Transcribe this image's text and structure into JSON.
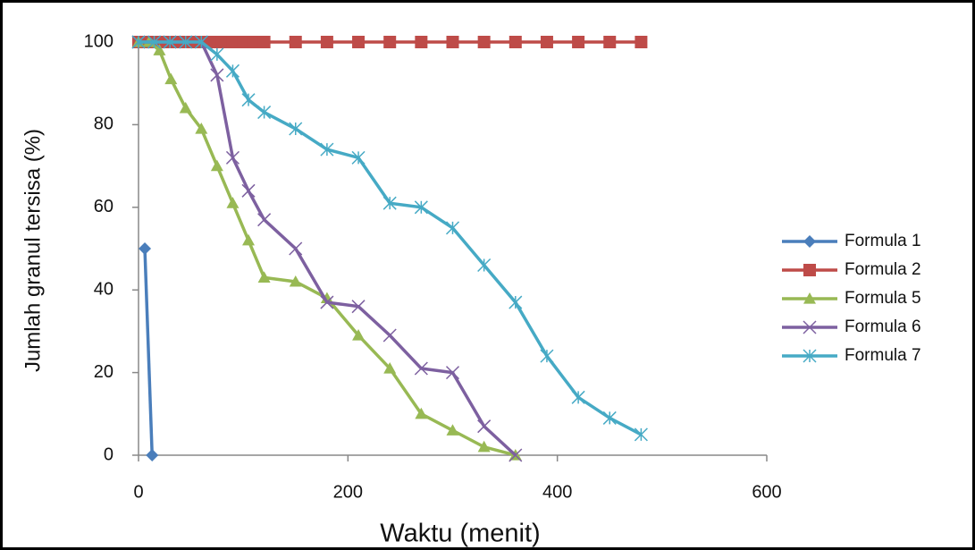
{
  "chart_data": {
    "type": "line",
    "x_label": "Waktu (menit)",
    "y_label": "Jumlah granul tersisa (%)",
    "xlim": [
      0,
      600
    ],
    "xticks": [
      0,
      200,
      400,
      600
    ],
    "ylim": [
      0,
      100
    ],
    "yticks": [
      0,
      20,
      40,
      60,
      80,
      100
    ],
    "grid": false,
    "legend": "right",
    "series": [
      {
        "name": "Formula 1",
        "color": "#4a7ebb",
        "marker": "diamond",
        "x": [
          6,
          13
        ],
        "values": [
          50,
          0
        ]
      },
      {
        "name": "Formula 2",
        "color": "#be4b48",
        "marker": "square",
        "x": [
          0,
          10,
          20,
          30,
          40,
          50,
          60,
          70,
          80,
          90,
          100,
          110,
          120,
          150,
          180,
          210,
          240,
          270,
          300,
          330,
          360,
          390,
          420,
          450,
          480
        ],
        "values": [
          100,
          100,
          100,
          100,
          100,
          100,
          100,
          100,
          100,
          100,
          100,
          100,
          100,
          100,
          100,
          100,
          100,
          100,
          100,
          100,
          100,
          100,
          100,
          100,
          100
        ]
      },
      {
        "name": "Formula 5",
        "color": "#98b954",
        "marker": "triangle",
        "x": [
          0,
          10,
          20,
          31,
          45,
          60,
          75,
          90,
          105,
          120,
          150,
          180,
          210,
          240,
          270,
          300,
          330,
          360
        ],
        "values": [
          100,
          100,
          98,
          91,
          84,
          79,
          70,
          61,
          52,
          43,
          42,
          38,
          29,
          21,
          10,
          6,
          2,
          0
        ]
      },
      {
        "name": "Formula 6",
        "color": "#7d60a0",
        "marker": "x",
        "x": [
          0,
          15,
          30,
          45,
          60,
          75,
          90,
          105,
          120,
          150,
          180,
          210,
          240,
          270,
          300,
          330,
          360
        ],
        "values": [
          100,
          100,
          100,
          100,
          100,
          92,
          72,
          64,
          57,
          50,
          37,
          36,
          29,
          21,
          20,
          7,
          0
        ]
      },
      {
        "name": "Formula 7",
        "color": "#46aac5",
        "marker": "star",
        "x": [
          0,
          15,
          30,
          45,
          60,
          75,
          90,
          105,
          120,
          150,
          180,
          210,
          240,
          270,
          300,
          330,
          360,
          390,
          420,
          450,
          480
        ],
        "values": [
          100,
          100,
          100,
          100,
          100,
          97,
          93,
          86,
          83,
          79,
          74,
          72,
          61,
          60,
          55,
          46,
          37,
          24,
          14,
          9,
          5
        ]
      }
    ]
  }
}
